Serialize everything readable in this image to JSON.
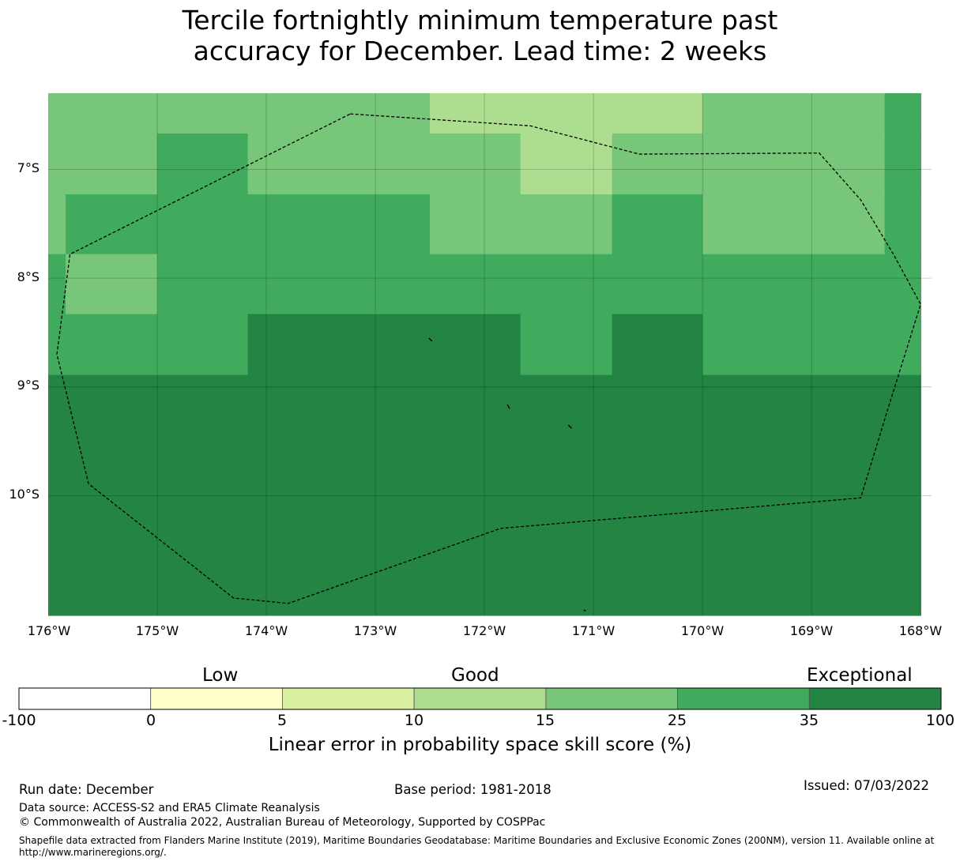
{
  "title": {
    "line1": "Tercile fortnightly minimum temperature past",
    "line2": "accuracy for December. Lead time: 2 weeks"
  },
  "map": {
    "lat_labels": [
      "7°S",
      "8°S",
      "9°S",
      "10°S"
    ],
    "lon_labels": [
      "176°W",
      "175°W",
      "174°W",
      "173°W",
      "172°W",
      "171°W",
      "170°W",
      "169°W",
      "168°W"
    ],
    "grid": true,
    "colors": {
      "15-25": "#78c679",
      "10-15": "#addd8e",
      "25-35": "#41ab5d",
      "35-100": "#238443",
      "eez_boundary": "#000000"
    },
    "cells_lon_edges": [
      -176.0,
      -175.0,
      -174.17,
      -172.5,
      -171.67,
      -170.83,
      -170.0,
      -168.33,
      -168.0
    ],
    "cells_lat_edges": [
      -6.3,
      -6.67,
      -7.23,
      -7.78,
      -8.33,
      -8.89,
      -11.1
    ],
    "cells": [
      [
        "15-25",
        "15-25",
        "15-25",
        "10-15",
        "10-15",
        "10-15",
        "15-25",
        "25-35"
      ],
      [
        "15-25",
        "25-35",
        "15-25",
        "15-25",
        "10-15",
        "15-25",
        "15-25",
        "25-35"
      ],
      [
        "25-35",
        "25-35",
        "25-35",
        "15-25",
        "15-25",
        "25-35",
        "15-25",
        "25-35"
      ],
      [
        "15-25",
        "25-35",
        "25-35",
        "25-35",
        "25-35",
        "25-35",
        "25-35",
        "25-35"
      ],
      [
        "25-35",
        "25-35",
        "35-100",
        "35-100",
        "25-35",
        "35-100",
        "25-35",
        "25-35"
      ],
      [
        "35-100",
        "35-100",
        "35-100",
        "35-100",
        "35-100",
        "35-100",
        "35-100",
        "35-100"
      ]
    ],
    "eez_boundary_lonlat": [
      [
        -173.23,
        -6.49
      ],
      [
        -171.58,
        -6.6
      ],
      [
        -170.58,
        -6.86
      ],
      [
        -168.93,
        -6.85
      ],
      [
        -168.55,
        -7.28
      ],
      [
        -168.25,
        -7.78
      ],
      [
        -168.0,
        -8.24
      ],
      [
        -168.3,
        -9.2
      ],
      [
        -168.55,
        -10.02
      ],
      [
        -171.85,
        -10.3
      ],
      [
        -173.8,
        -10.99
      ],
      [
        -174.3,
        -10.94
      ],
      [
        -175.63,
        -9.89
      ],
      [
        -175.92,
        -8.7
      ],
      [
        -175.8,
        -7.78
      ],
      [
        -173.23,
        -6.49
      ]
    ],
    "islands_lonlat": [
      [
        [
          -172.51,
          -8.55
        ],
        [
          -172.48,
          -8.58
        ]
      ],
      [
        [
          -171.79,
          -9.16
        ],
        [
          -171.77,
          -9.2
        ]
      ],
      [
        [
          -171.23,
          -9.35
        ],
        [
          -171.2,
          -9.38
        ]
      ],
      [
        [
          -171.09,
          -11.05
        ],
        [
          -171.07,
          -11.06
        ]
      ]
    ]
  },
  "colorbar": {
    "categories": [
      "Low",
      "Good",
      "Exceptional"
    ],
    "ticks": [
      "-100",
      "0",
      "5",
      "10",
      "15",
      "25",
      "35",
      "100"
    ],
    "colors": [
      "#ffffff",
      "#ffffcc",
      "#d9f0a3",
      "#addd8e",
      "#78c679",
      "#41ab5d",
      "#238443"
    ],
    "xlabel": "Linear error in probability space skill score (%)"
  },
  "footer": {
    "run_date": "Run date: December",
    "base_period": "Base period: 1981-2018",
    "issued": "Issued: 07/03/2022",
    "data_source": "Data source: ACCESS-S2 and ERA5 Climate Reanalysis",
    "copyright": "© Commonwealth of Australia 2022, Australian Bureau of Meteorology, Supported by COSPPac",
    "shapefile": "Shapefile data extracted from Flanders Marine Institute (2019), Maritime Boundaries Geodatabase: Maritime Boundaries and Exclusive Economic Zones (200NM), version 11. Available online at http://www.marineregions.org/."
  }
}
